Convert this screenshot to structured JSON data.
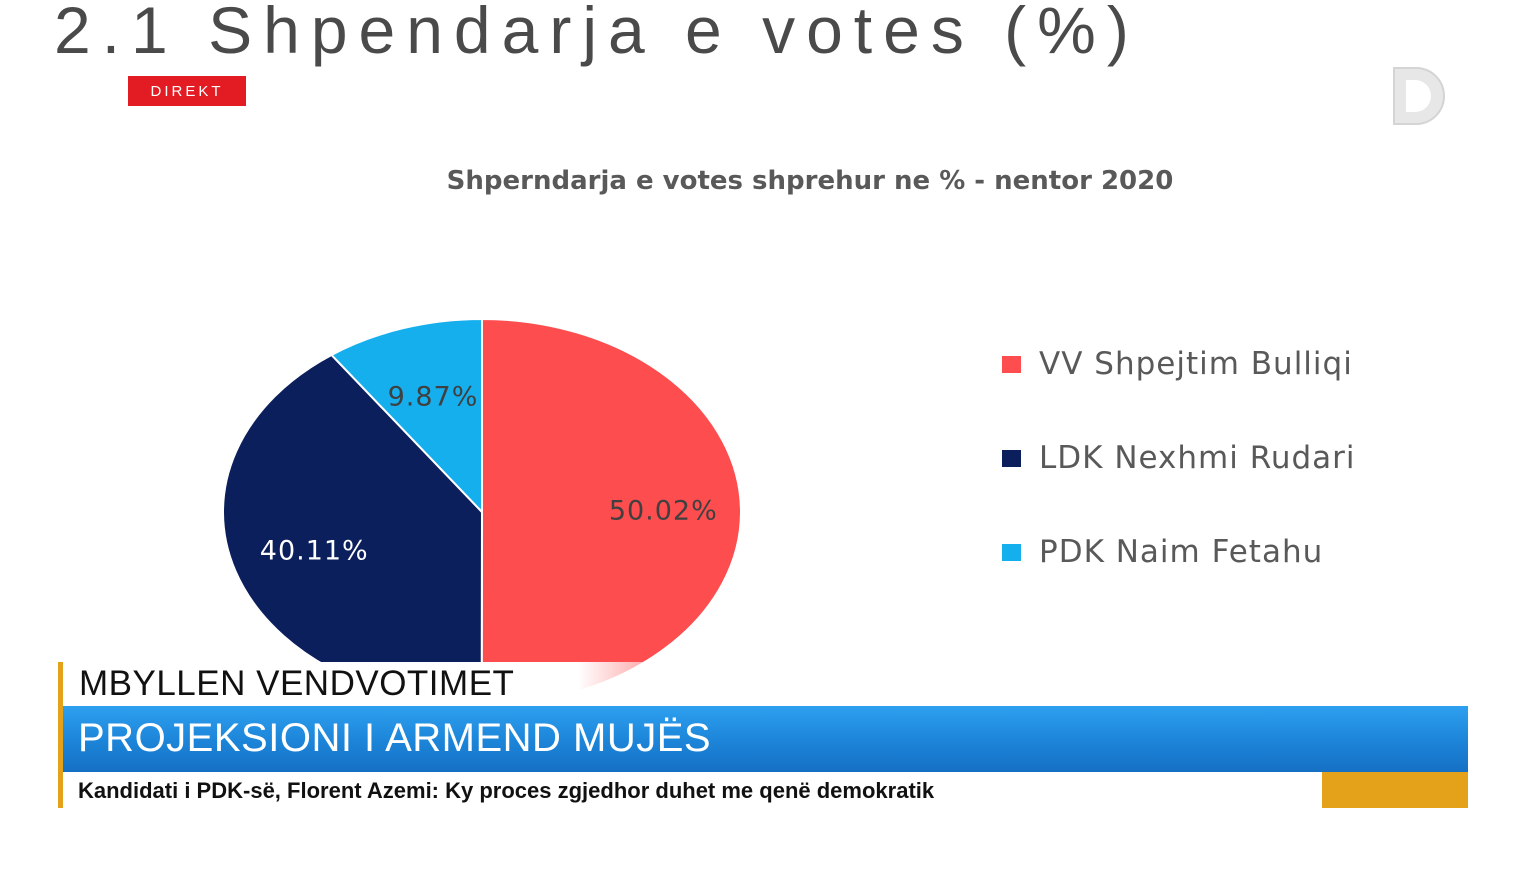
{
  "slide": {
    "title": "2.1 Shpendarja e votes (%)"
  },
  "broadcast": {
    "live_badge": "DIREKT",
    "logo_letter": "D"
  },
  "chart_data": {
    "type": "pie",
    "title": "Shperndarja e votes shprehur ne % - nentor 2020",
    "categories": [
      "VV Shpejtim Bulliqi",
      "LDK Nexhmi Rudari",
      "PDK Naim Fetahu"
    ],
    "values": [
      50.02,
      40.11,
      9.87
    ],
    "data_labels": [
      "50.02%",
      "40.11%",
      "9.87%"
    ],
    "colors": [
      "#fd4d4f",
      "#0b1f5c",
      "#16afee"
    ],
    "legend_position": "right"
  },
  "ticker": {
    "top": "MBYLLEN VENDVOTIMET",
    "main": "PROJEKSIONI I ARMEND MUJËS",
    "sub": "Kandidati i PDK-së, Florent Azemi: Ky proces zgjedhor duhet me qenë demokratik"
  }
}
